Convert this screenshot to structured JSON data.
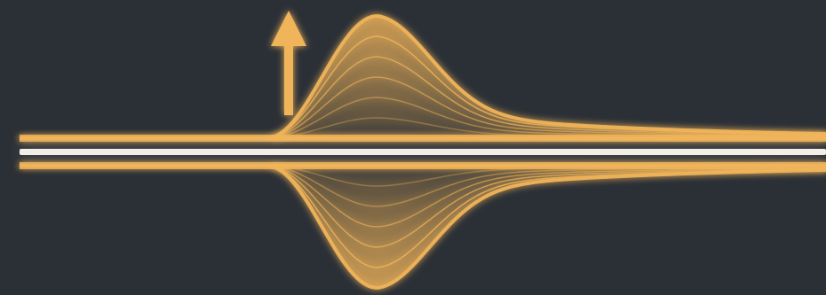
{
  "colors": {
    "background": "#2b3037",
    "glow": "#f0b45a",
    "glow_dim": "#d59a48",
    "center_line": "#f4efe6"
  },
  "icons": {
    "indicator": "up-arrow-icon"
  },
  "visual": {
    "shape_count_per_side": 6
  }
}
